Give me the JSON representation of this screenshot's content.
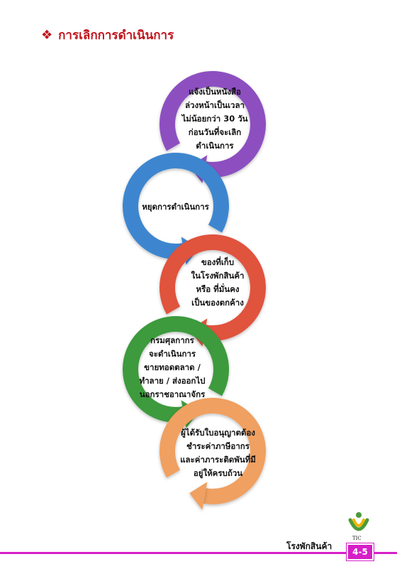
{
  "heading": {
    "bullet_icon": "diamond-bullet-icon",
    "title": "การเลิกการดำเนินการ"
  },
  "flow": {
    "steps": [
      {
        "lines": [
          "แจ้งเป็นหนังสือ",
          "ล่วงหน้าเป็นเวลา",
          "ไม่น้อยกว่า 30 วัน",
          "ก่อนวันที่จะเลิก",
          "ดำเนินการ"
        ],
        "color": "#8d4fc0"
      },
      {
        "lines": [
          "หยุดการดำเนินการ"
        ],
        "color": "#3d86cf"
      },
      {
        "lines": [
          "ของที่เก็บ",
          "ในโรงพักสินค้า",
          "หรือ ที่มั่นคง",
          "เป็นของตกค้าง"
        ],
        "color": "#e0533c"
      },
      {
        "lines": [
          "กรมศุลกากร",
          "จะดำเนินการ",
          "ขายทอดตลาด  /",
          "ทำลาย / ส่งออกไป",
          "นอกราชอาณาจักร"
        ],
        "color": "#3d9a3d"
      },
      {
        "lines": [
          "ผู้ได้รับใบอนุญาตต้อง",
          "ชำระค่าภาษีอากร",
          "และค่าภาระติดพันที่มี",
          "อยู่ให้ครบถ้วน"
        ],
        "color": "#f0a060"
      }
    ]
  },
  "footer": {
    "label": "โรงพักสินค้า",
    "page_number": "4-5",
    "logo_text": "TIC",
    "accent_color": "#d61fc8"
  }
}
